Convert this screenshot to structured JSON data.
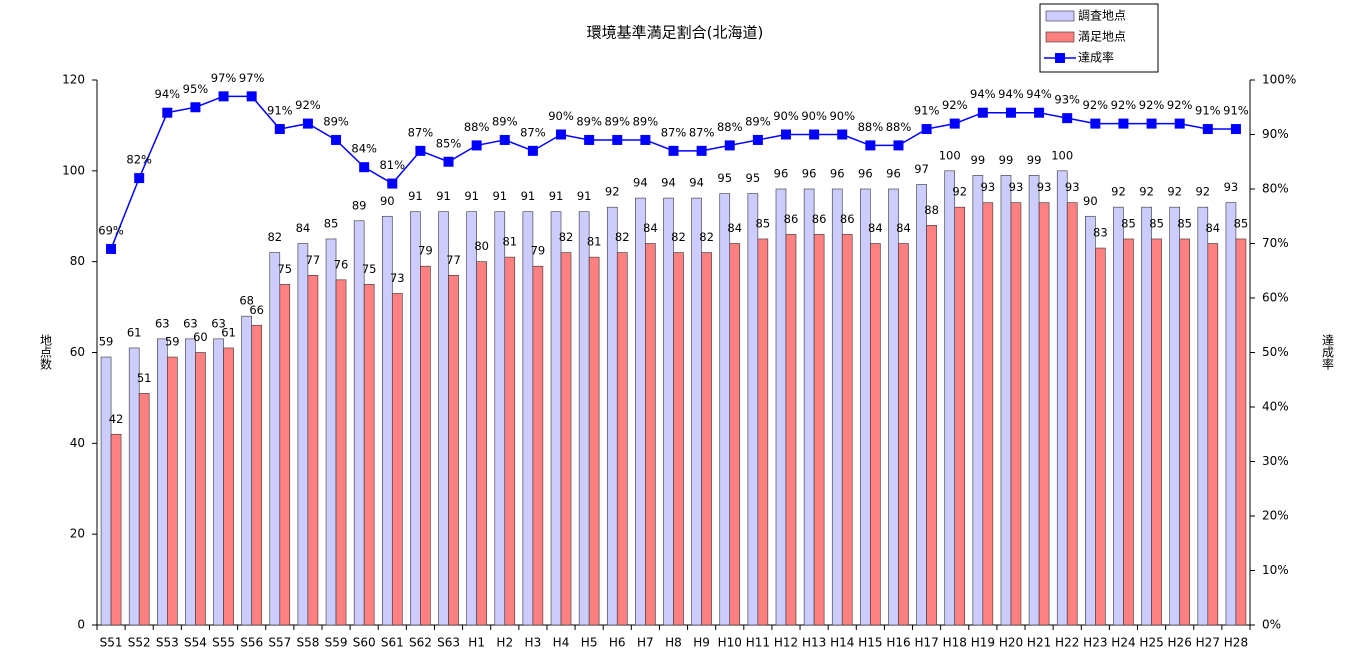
{
  "chart_data": {
    "type": "bar",
    "title": "環境基準満足割合(北海道)",
    "y_label": "地点数",
    "y2_label": "達成率",
    "categories": [
      "S51",
      "S52",
      "S53",
      "S54",
      "S55",
      "S56",
      "S57",
      "S58",
      "S59",
      "S60",
      "S61",
      "S62",
      "S63",
      "H1",
      "H2",
      "H3",
      "H4",
      "H5",
      "H6",
      "H7",
      "H8",
      "H9",
      "H10",
      "H11",
      "H12",
      "H13",
      "H14",
      "H15",
      "H16",
      "H17",
      "H18",
      "H19",
      "H20",
      "H21",
      "H22",
      "H23",
      "H24",
      "H25",
      "H26",
      "H27",
      "H28"
    ],
    "series": [
      {
        "name": "調査地点",
        "type": "bar",
        "color": "#ccccff",
        "values": [
          59,
          61,
          63,
          63,
          63,
          68,
          82,
          84,
          85,
          89,
          90,
          91,
          91,
          91,
          91,
          91,
          91,
          91,
          92,
          94,
          94,
          94,
          95,
          95,
          96,
          96,
          96,
          96,
          96,
          97,
          100,
          99,
          99,
          99,
          100,
          90,
          92,
          92,
          92,
          92,
          93
        ]
      },
      {
        "name": "満足地点",
        "type": "bar",
        "color": "#ff8080",
        "values": [
          42,
          51,
          59,
          60,
          61,
          66,
          75,
          77,
          76,
          75,
          73,
          79,
          77,
          80,
          81,
          79,
          82,
          81,
          82,
          84,
          82,
          82,
          84,
          85,
          86,
          86,
          86,
          84,
          84,
          88,
          92,
          93,
          93,
          93,
          93,
          83,
          85,
          85,
          85,
          84,
          85
        ]
      },
      {
        "name": "達成率",
        "type": "line",
        "axis": "y2",
        "color": "#0000ff",
        "values": [
          69,
          82,
          94,
          95,
          97,
          97,
          91,
          92,
          89,
          84,
          81,
          87,
          85,
          88,
          89,
          87,
          90,
          89,
          89,
          89,
          87,
          87,
          88,
          89,
          90,
          90,
          90,
          88,
          88,
          91,
          92,
          94,
          94,
          94,
          93,
          92,
          92,
          92,
          92,
          91,
          91
        ],
        "value_labels": [
          "69%",
          "82%",
          "94%",
          "95%",
          "97%",
          "97%",
          "91%",
          "92%",
          "89%",
          "84%",
          "81%",
          "87%",
          "85%",
          "88%",
          "89%",
          "87%",
          "90%",
          "89%",
          "89%",
          "89%",
          "87%",
          "87%",
          "88%",
          "89%",
          "90%",
          "90%",
          "90%",
          "88%",
          "88%",
          "91%",
          "92%",
          "94%",
          "94%",
          "94%",
          "93%",
          "92%",
          "92%",
          "92%",
          "92%",
          "91%",
          "91%"
        ]
      }
    ],
    "ylim": [
      0,
      120
    ],
    "yticks": [
      0,
      20,
      40,
      60,
      80,
      100,
      120
    ],
    "y2lim": [
      0,
      100
    ],
    "y2ticks": [
      {
        "value": 0,
        "label": "0%"
      },
      {
        "value": 10,
        "label": "10%"
      },
      {
        "value": 20,
        "label": "20%"
      },
      {
        "value": 30,
        "label": "30%"
      },
      {
        "value": 40,
        "label": "40%"
      },
      {
        "value": 50,
        "label": "50%"
      },
      {
        "value": 60,
        "label": "60%"
      },
      {
        "value": 70,
        "label": "70%"
      },
      {
        "value": 80,
        "label": "80%"
      },
      {
        "value": 90,
        "label": "90%"
      },
      {
        "value": 100,
        "label": "100%"
      }
    ],
    "grid": false,
    "legend": "top-right"
  }
}
